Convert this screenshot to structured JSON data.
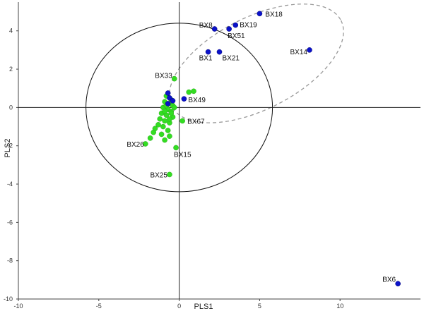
{
  "chart_data": {
    "type": "scatter",
    "title": "",
    "xlabel": "PLS1",
    "ylabel": "PLS2",
    "xlim": [
      -10,
      15
    ],
    "ylim": [
      -10,
      5.5
    ],
    "x_ticks": [
      -10,
      -5,
      0,
      5,
      10
    ],
    "y_ticks": [
      4,
      2,
      0,
      -2,
      -4,
      -6,
      -8,
      -10
    ],
    "grid": false,
    "legend": "none",
    "colors": {
      "blue": "#0b12c9",
      "green": "#33dd22",
      "ellipse": "#111111",
      "dashed_ellipse": "#999999"
    },
    "ellipse": {
      "cx": 0,
      "cy": 0,
      "rx": 5.8,
      "ry": 4.4
    },
    "dashed_ellipse": {
      "cx": 4.8,
      "cy": 2.3,
      "rx": 5.9,
      "ry": 2.4,
      "angle_deg": -27
    },
    "series": [
      {
        "color": "blue",
        "points": [
          {
            "label": "BX18",
            "x": 5.0,
            "y": 4.9
          },
          {
            "label": "BX8",
            "x": 2.2,
            "y": 4.1
          },
          {
            "label": "BX19",
            "x": 3.5,
            "y": 4.3
          },
          {
            "label": "BX51",
            "x": 3.1,
            "y": 4.1
          },
          {
            "label": "BX14",
            "x": 8.1,
            "y": 3.0
          },
          {
            "label": "BX1",
            "x": 1.8,
            "y": 2.9
          },
          {
            "label": "BX21",
            "x": 2.5,
            "y": 2.9
          },
          {
            "label": "BX49",
            "x": 0.3,
            "y": 0.45
          },
          {
            "label": "BX6",
            "x": 13.6,
            "y": -9.2
          },
          {
            "label": "",
            "x": -0.7,
            "y": 0.75
          },
          {
            "label": "",
            "x": -0.6,
            "y": 0.5
          },
          {
            "label": "",
            "x": -0.4,
            "y": 0.35
          },
          {
            "label": "",
            "x": -0.7,
            "y": 0.2
          }
        ]
      },
      {
        "color": "green",
        "points": [
          {
            "label": "BX33",
            "x": -0.3,
            "y": 1.5
          },
          {
            "label": "BX67",
            "x": 0.2,
            "y": -0.7
          },
          {
            "label": "BX26",
            "x": -2.1,
            "y": -1.9
          },
          {
            "label": "BX15",
            "x": -0.2,
            "y": -2.1
          },
          {
            "label": "BX25",
            "x": -0.6,
            "y": -3.5
          },
          {
            "label": "",
            "x": 0.6,
            "y": 0.8
          },
          {
            "label": "",
            "x": 0.9,
            "y": 0.85
          },
          {
            "label": "",
            "x": -0.8,
            "y": 0.6
          },
          {
            "label": "",
            "x": -0.5,
            "y": 0.4
          },
          {
            "label": "",
            "x": -0.9,
            "y": 0.3
          },
          {
            "label": "",
            "x": -0.6,
            "y": 0.2
          },
          {
            "label": "",
            "x": -0.4,
            "y": 0.1
          },
          {
            "label": "",
            "x": -1.0,
            "y": 0.0
          },
          {
            "label": "",
            "x": -0.7,
            "y": -0.1
          },
          {
            "label": "",
            "x": -0.5,
            "y": -0.2
          },
          {
            "label": "",
            "x": -1.1,
            "y": -0.3
          },
          {
            "label": "",
            "x": -0.8,
            "y": -0.4
          },
          {
            "label": "",
            "x": -0.4,
            "y": -0.5
          },
          {
            "label": "",
            "x": -1.2,
            "y": -0.6
          },
          {
            "label": "",
            "x": -0.9,
            "y": -0.7
          },
          {
            "label": "",
            "x": -0.6,
            "y": -0.8
          },
          {
            "label": "",
            "x": -1.3,
            "y": -0.9
          },
          {
            "label": "",
            "x": -1.0,
            "y": -1.0
          },
          {
            "label": "",
            "x": -1.5,
            "y": -1.1
          },
          {
            "label": "",
            "x": -0.7,
            "y": -1.2
          },
          {
            "label": "",
            "x": -1.6,
            "y": -1.3
          },
          {
            "label": "",
            "x": -1.1,
            "y": -1.4
          },
          {
            "label": "",
            "x": -0.6,
            "y": -1.5
          },
          {
            "label": "",
            "x": -1.8,
            "y": -1.6
          },
          {
            "label": "",
            "x": -0.5,
            "y": -0.3
          },
          {
            "label": "",
            "x": -0.8,
            "y": 0.1
          },
          {
            "label": "",
            "x": -0.3,
            "y": 0.0
          },
          {
            "label": "",
            "x": -0.9,
            "y": -0.2
          },
          {
            "label": "",
            "x": -0.6,
            "y": -0.6
          },
          {
            "label": "",
            "x": -0.9,
            "y": -1.7
          }
        ]
      }
    ]
  }
}
